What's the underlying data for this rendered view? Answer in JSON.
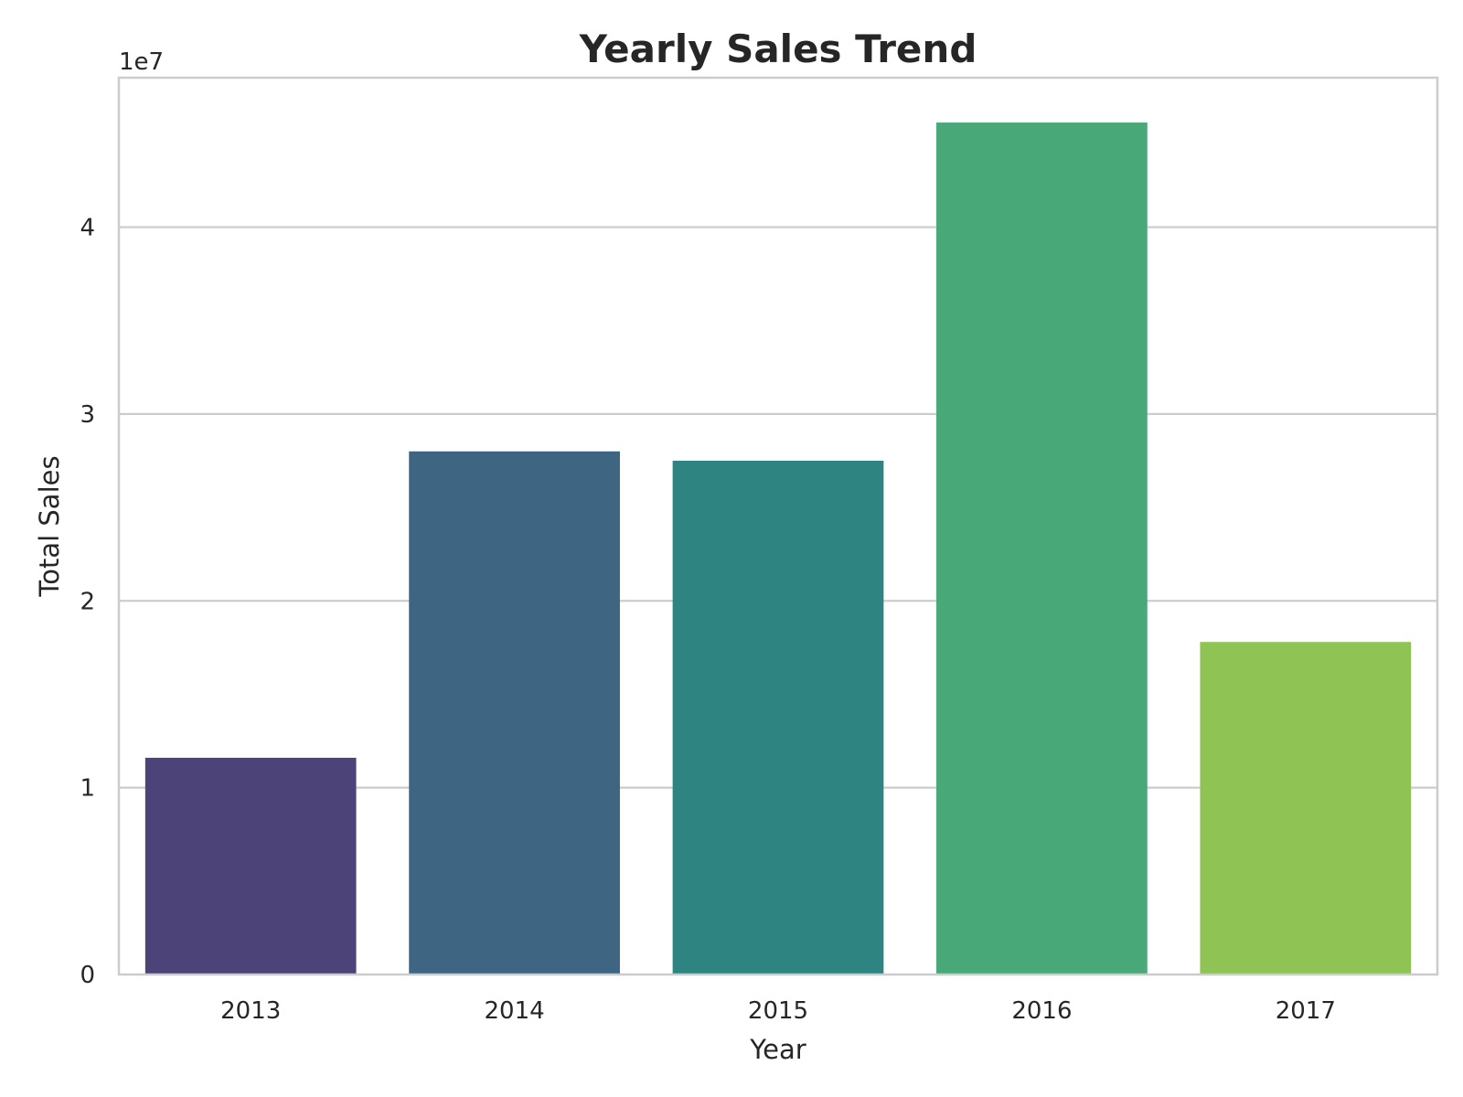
{
  "chart_data": {
    "type": "bar",
    "title": "Yearly Sales Trend",
    "xlabel": "Year",
    "ylabel": "Total Sales",
    "categories": [
      "2013",
      "2014",
      "2015",
      "2016",
      "2017"
    ],
    "values": [
      11600000,
      28000000,
      27500000,
      45600000,
      17800000
    ],
    "ylim": [
      0,
      48000000
    ],
    "yticks": [
      0,
      10000000,
      20000000,
      30000000,
      40000000
    ],
    "ytick_labels": [
      "0",
      "1",
      "2",
      "3",
      "4"
    ],
    "y_offset_label": "1e7",
    "grid": true,
    "grid_axis": "y",
    "colors": [
      "#4c4479",
      "#3e6682",
      "#2e8480",
      "#48a878",
      "#8fc455"
    ],
    "grid_color": "#cccccc",
    "frame_color": "#cccccc"
  }
}
